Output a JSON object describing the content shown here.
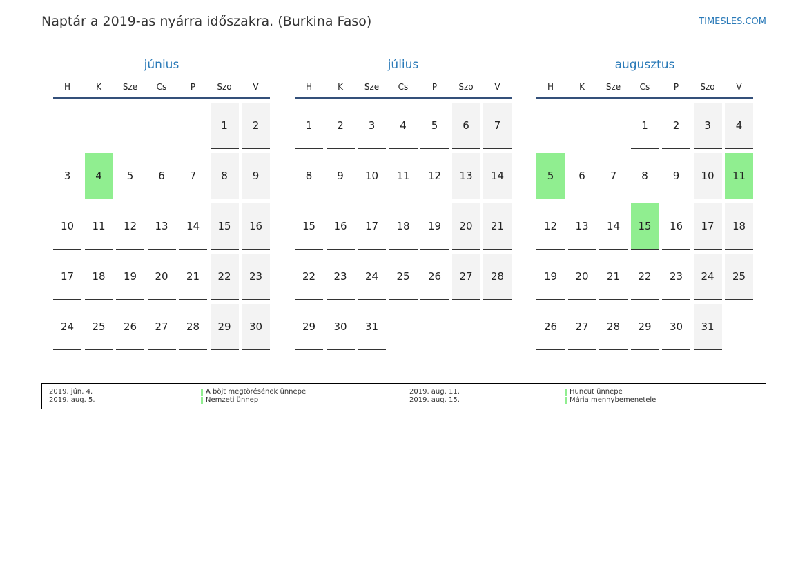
{
  "header": {
    "title": "Naptár a 2019-as nyárra időszakra. (Burkina Faso)",
    "brand": "TIMESLES.COM"
  },
  "months": [
    {
      "name": "június",
      "weekdays": [
        "H",
        "K",
        "Sze",
        "Cs",
        "P",
        "Szo",
        "V"
      ],
      "weeks": [
        [
          null,
          null,
          null,
          null,
          null,
          1,
          2
        ],
        [
          3,
          4,
          5,
          6,
          7,
          8,
          9
        ],
        [
          10,
          11,
          12,
          13,
          14,
          15,
          16
        ],
        [
          17,
          18,
          19,
          20,
          21,
          22,
          23
        ],
        [
          24,
          25,
          26,
          27,
          28,
          29,
          30
        ]
      ],
      "holidays": [
        4
      ]
    },
    {
      "name": "július",
      "weekdays": [
        "H",
        "K",
        "Sze",
        "Cs",
        "P",
        "Szo",
        "V"
      ],
      "weeks": [
        [
          1,
          2,
          3,
          4,
          5,
          6,
          7
        ],
        [
          8,
          9,
          10,
          11,
          12,
          13,
          14
        ],
        [
          15,
          16,
          17,
          18,
          19,
          20,
          21
        ],
        [
          22,
          23,
          24,
          25,
          26,
          27,
          28
        ],
        [
          29,
          30,
          31,
          null,
          null,
          null,
          null
        ]
      ],
      "holidays": []
    },
    {
      "name": "augusztus",
      "weekdays": [
        "H",
        "K",
        "Sze",
        "Cs",
        "P",
        "Szo",
        "V"
      ],
      "weeks": [
        [
          null,
          null,
          null,
          1,
          2,
          3,
          4
        ],
        [
          5,
          6,
          7,
          8,
          9,
          10,
          11
        ],
        [
          12,
          13,
          14,
          15,
          16,
          17,
          18
        ],
        [
          19,
          20,
          21,
          22,
          23,
          24,
          25
        ],
        [
          26,
          27,
          28,
          29,
          30,
          31,
          null
        ]
      ],
      "holidays": [
        5,
        11,
        15
      ]
    }
  ],
  "legend": [
    {
      "date": "2019. jún. 4.",
      "name": "A böjt megtörésének ünnepe"
    },
    {
      "date": "2019. aug. 5.",
      "name": "Nemzeti ünnep"
    },
    {
      "date": "2019. aug. 11.",
      "name": "Huncut ünnepe"
    },
    {
      "date": "2019. aug. 15.",
      "name": "Mária mennybemenetele"
    }
  ]
}
